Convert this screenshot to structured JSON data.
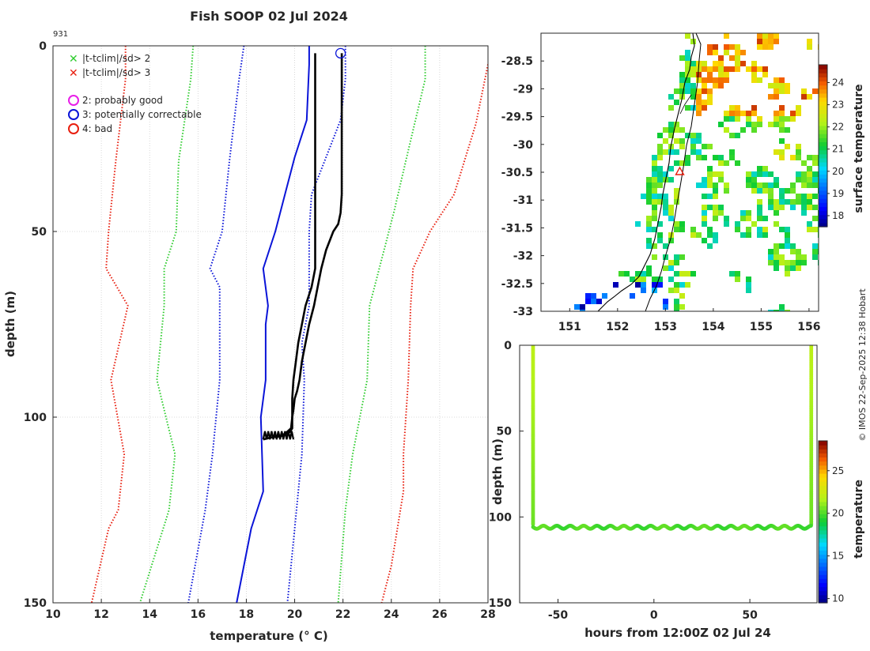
{
  "figure": {
    "title": "Fish SOOP 02 Jul 2024",
    "profile_id": "931",
    "credit": "© IMOS 22-Sep-2025 12:38 Hobart"
  },
  "colors": {
    "clim2": "#2ecc2e",
    "clim3": "#e81e0e",
    "sd1": "#0a14d8",
    "profile": "#000000",
    "flag_good": "#e81ee8",
    "flag_correctable": "#0a14d8",
    "flag_bad": "#e81e0e"
  },
  "chart_data": [
    {
      "type": "line",
      "id": "profile",
      "title": "Fish SOOP 02 Jul 2024",
      "xlabel": "temperature (° C)",
      "ylabel": "depth (m)",
      "xlim": [
        10,
        28
      ],
      "ylim": [
        150,
        0
      ],
      "xticks": [
        10,
        12,
        14,
        16,
        18,
        20,
        22,
        24,
        26,
        28
      ],
      "yticks": [
        0,
        50,
        100,
        150
      ],
      "grid": true,
      "legend": [
        {
          "marker": "x",
          "color": "#2ecc2e",
          "label": "|t-tclim|/sd> 2"
        },
        {
          "marker": "x",
          "color": "#e81e0e",
          "label": "|t-tclim|/sd> 3"
        },
        {
          "marker": "o",
          "color": "#e81ee8",
          "label": "2: probably good"
        },
        {
          "marker": "o",
          "color": "#0a14d8",
          "label": "3: potentially correctable"
        },
        {
          "marker": "o",
          "color": "#e81e0e",
          "label": "4: bad"
        }
      ],
      "series": [
        {
          "name": "clim_minus_3sd",
          "style": "dotted",
          "color": "#e81e0e",
          "x": [
            13.0,
            13.0,
            12.6,
            12.3,
            12.2,
            13.1,
            12.4,
            12.95,
            12.7,
            12.3,
            11.6
          ],
          "y": [
            0,
            9,
            31,
            50,
            60,
            70,
            90,
            110,
            125,
            130,
            150
          ]
        },
        {
          "name": "clim_minus_2sd",
          "style": "dotted",
          "color": "#2ecc2e",
          "x": [
            15.8,
            15.7,
            15.2,
            15.1,
            14.6,
            14.6,
            14.3,
            15.05,
            14.8,
            13.6
          ],
          "y": [
            0,
            9,
            31,
            50,
            60,
            70,
            90,
            110,
            125,
            150
          ]
        },
        {
          "name": "clim_minus_1sd",
          "style": "dotted",
          "color": "#0a14d8",
          "x": [
            17.9,
            17.7,
            17.3,
            17.0,
            16.5,
            16.9,
            16.9,
            16.6,
            16.3,
            15.6
          ],
          "y": [
            0,
            9,
            31,
            50,
            60,
            65,
            90,
            110,
            125,
            150
          ]
        },
        {
          "name": "climatology_mean",
          "style": "solid",
          "color": "#0a14d8",
          "x": [
            20.6,
            20.6,
            20.5,
            20.0,
            19.6,
            19.2,
            18.7,
            18.9,
            18.8,
            18.8,
            18.6,
            18.7,
            18.2,
            17.6
          ],
          "y": [
            0,
            5,
            20,
            30,
            40,
            50,
            60,
            70,
            75,
            90,
            100,
            120,
            130,
            150
          ]
        },
        {
          "name": "clim_plus_1sd",
          "style": "dotted",
          "color": "#0a14d8",
          "x": [
            22.1,
            22.1,
            21.9,
            21.3,
            20.7,
            20.6,
            20.6,
            20.3,
            20.4,
            20.3,
            20.0,
            19.7
          ],
          "y": [
            0,
            9,
            20,
            30,
            40,
            50,
            70,
            80,
            90,
            110,
            130,
            150
          ]
        },
        {
          "name": "clim_plus_2sd",
          "style": "dotted",
          "color": "#2ecc2e",
          "x": [
            25.4,
            25.4,
            25.0,
            24.6,
            24.1,
            23.5,
            23.1,
            23.0,
            22.4,
            22.1,
            21.8
          ],
          "y": [
            0,
            9,
            20,
            31,
            45,
            60,
            70,
            90,
            110,
            125,
            150
          ]
        },
        {
          "name": "clim_plus_3sd",
          "style": "dotted",
          "color": "#e81e0e",
          "x": [
            28.0,
            27.5,
            26.6,
            25.6,
            24.9,
            24.8,
            24.7,
            24.5,
            24.5,
            24.0,
            23.8,
            23.6
          ],
          "y": [
            5,
            21,
            40,
            50,
            60,
            70,
            90,
            110,
            120,
            140,
            145,
            150
          ]
        },
        {
          "name": "profile_drop_1",
          "style": "solid",
          "color": "#000000",
          "x": [
            21.95,
            21.95,
            21.95,
            21.9,
            21.8,
            21.6,
            21.3,
            21.1,
            20.95,
            20.8,
            20.6,
            20.45,
            20.3,
            20.2,
            20.1,
            20.0,
            19.95,
            19.9,
            19.9,
            19.8,
            19.5,
            19.0,
            18.7
          ],
          "y": [
            2,
            20,
            40,
            45,
            48,
            50,
            55,
            60,
            65,
            70,
            75,
            80,
            85,
            90,
            93,
            95,
            98,
            100,
            103,
            104,
            105,
            105.5,
            106
          ]
        },
        {
          "name": "profile_drop_2",
          "style": "solid",
          "color": "#000000",
          "x": [
            20.85,
            20.85,
            20.85,
            20.85,
            20.85,
            20.85,
            20.7,
            20.45,
            20.3,
            20.15,
            20.05,
            19.95,
            19.9,
            19.9,
            19.85,
            19.6,
            19.2
          ],
          "y": [
            2,
            20,
            40,
            50,
            55,
            60,
            65,
            70,
            75,
            80,
            85,
            90,
            95,
            100,
            103,
            104.5,
            105.5
          ]
        }
      ],
      "flag_marker": {
        "flag": "3: potentially correctable",
        "x": 21.9,
        "y": 2
      }
    },
    {
      "type": "heatmap",
      "id": "map",
      "xlim": [
        150.4,
        156.2
      ],
      "ylim": [
        -33.0,
        -28.0
      ],
      "xticks": [
        151,
        152,
        153,
        154,
        155,
        156
      ],
      "yticks": [
        -28.5,
        -29,
        -29.5,
        -30,
        -30.5,
        -31,
        -31.5,
        -32,
        -32.5,
        -33
      ],
      "colorbar": {
        "label": "surface temperature",
        "range": [
          17.5,
          24.8
        ],
        "ticks": [
          18,
          19,
          20,
          21,
          22,
          23,
          24
        ]
      },
      "location_marker": {
        "lon": 153.3,
        "lat": -30.5,
        "marker": "triangle",
        "color": "#e81e0e"
      }
    },
    {
      "type": "scatter",
      "id": "time_depth",
      "xlabel": "hours from 12:00Z 02 Jul 24",
      "ylabel": "depth (m)",
      "xlim": [
        -70,
        85
      ],
      "ylim": [
        150,
        0
      ],
      "xticks": [
        -50,
        0,
        50
      ],
      "yticks": [
        0,
        50,
        100,
        150
      ],
      "colorbar": {
        "label": "temperature",
        "range": [
          9.5,
          28.5
        ],
        "ticks": [
          10,
          15,
          20,
          25
        ]
      },
      "series": [
        {
          "name": "first_descent",
          "x": -63,
          "depth_start": 0,
          "depth_end": 105,
          "temp_start": 22.0,
          "temp_end": 20.5
        },
        {
          "name": "bottom_track",
          "x_start": -63,
          "x_end": 82,
          "depth_mean": 106,
          "depth_amplitude": 0.9,
          "temperature": 20.0
        },
        {
          "name": "second_descent",
          "x": 82,
          "depth_start": 0,
          "depth_end": 105,
          "temp_start": 22.0,
          "temp_end": 20.5
        }
      ]
    }
  ]
}
